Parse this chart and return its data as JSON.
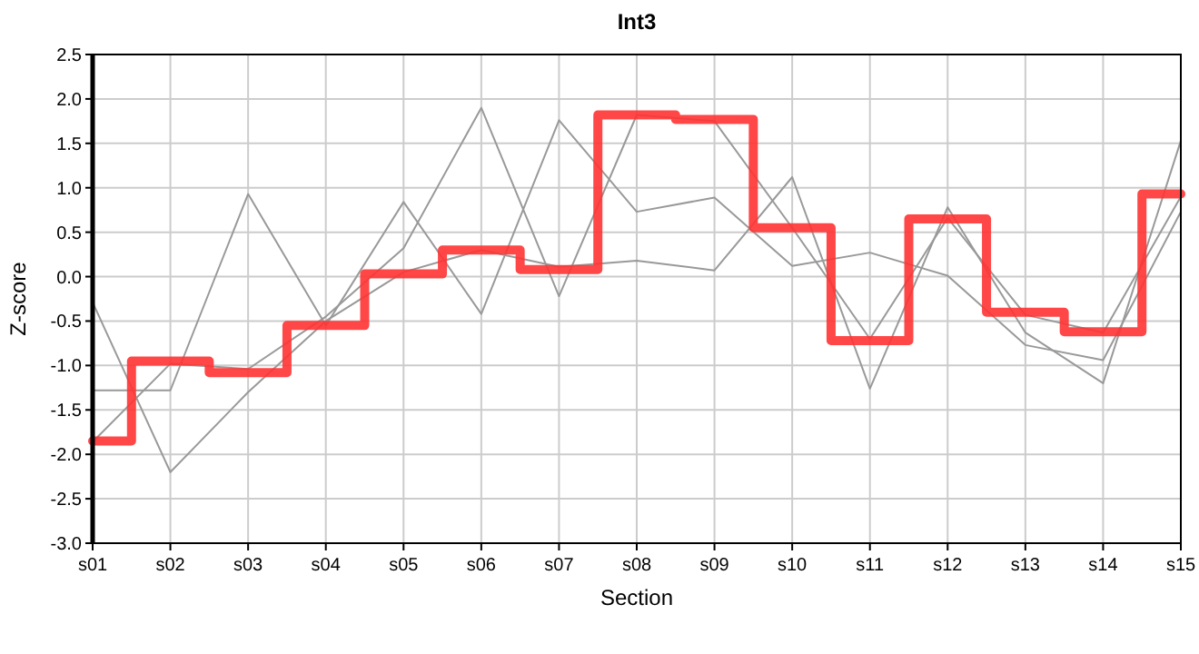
{
  "chart_data": {
    "type": "line",
    "title": "Int3",
    "xlabel": "Section",
    "ylabel": "Z-score",
    "categories": [
      "s01",
      "s02",
      "s03",
      "s04",
      "s05",
      "s06",
      "s07",
      "s08",
      "s09",
      "s10",
      "s11",
      "s12",
      "s13",
      "s14",
      "s15"
    ],
    "ylim": [
      -3,
      2.5
    ],
    "yticks": [
      {
        "value": -3,
        "label": "-3.0"
      },
      {
        "value": -2.5,
        "label": "-2.5"
      },
      {
        "value": -2,
        "label": "-2.0"
      },
      {
        "value": -1.5,
        "label": "-1.5"
      },
      {
        "value": -1,
        "label": "-1.0"
      },
      {
        "value": -0.5,
        "label": "-0.5"
      },
      {
        "value": 0,
        "label": "0.0"
      },
      {
        "value": 0.5,
        "label": "0.5"
      },
      {
        "value": 1,
        "label": "1.0"
      },
      {
        "value": 1.5,
        "label": "1.5"
      },
      {
        "value": 2,
        "label": "2.0"
      },
      {
        "value": 2.5,
        "label": "2.5"
      }
    ],
    "grid": true,
    "marker": "none",
    "line_style": "solid",
    "series": [
      {
        "color": "#999999",
        "values": [
          -0.29,
          -2.2,
          -1.3,
          -0.5,
          0.05,
          0.3,
          0.11,
          0.18,
          0.07,
          1.12,
          -1.26,
          0.78,
          -0.63,
          -1.2,
          1.53
        ]
      },
      {
        "color": "#999999",
        "values": [
          -1.28,
          -1.28,
          0.93,
          -0.55,
          0.84,
          -0.42,
          1.76,
          0.73,
          0.89,
          0.12,
          0.27,
          0.01,
          -0.77,
          -0.94,
          0.73
        ]
      },
      {
        "color": "#999999",
        "values": [
          -1.86,
          -0.98,
          -1.04,
          -0.45,
          0.32,
          1.9,
          -0.22,
          1.82,
          1.75,
          0.55,
          -0.7,
          0.66,
          -0.43,
          -0.63,
          0.9
        ]
      },
      {
        "type": "step",
        "color": "#ff3333",
        "values": [
          -1.85,
          -0.95,
          -1.08,
          -0.55,
          0.03,
          0.3,
          0.08,
          1.82,
          1.77,
          0.55,
          -0.72,
          0.65,
          -0.4,
          -0.62,
          0.93
        ]
      }
    ]
  }
}
